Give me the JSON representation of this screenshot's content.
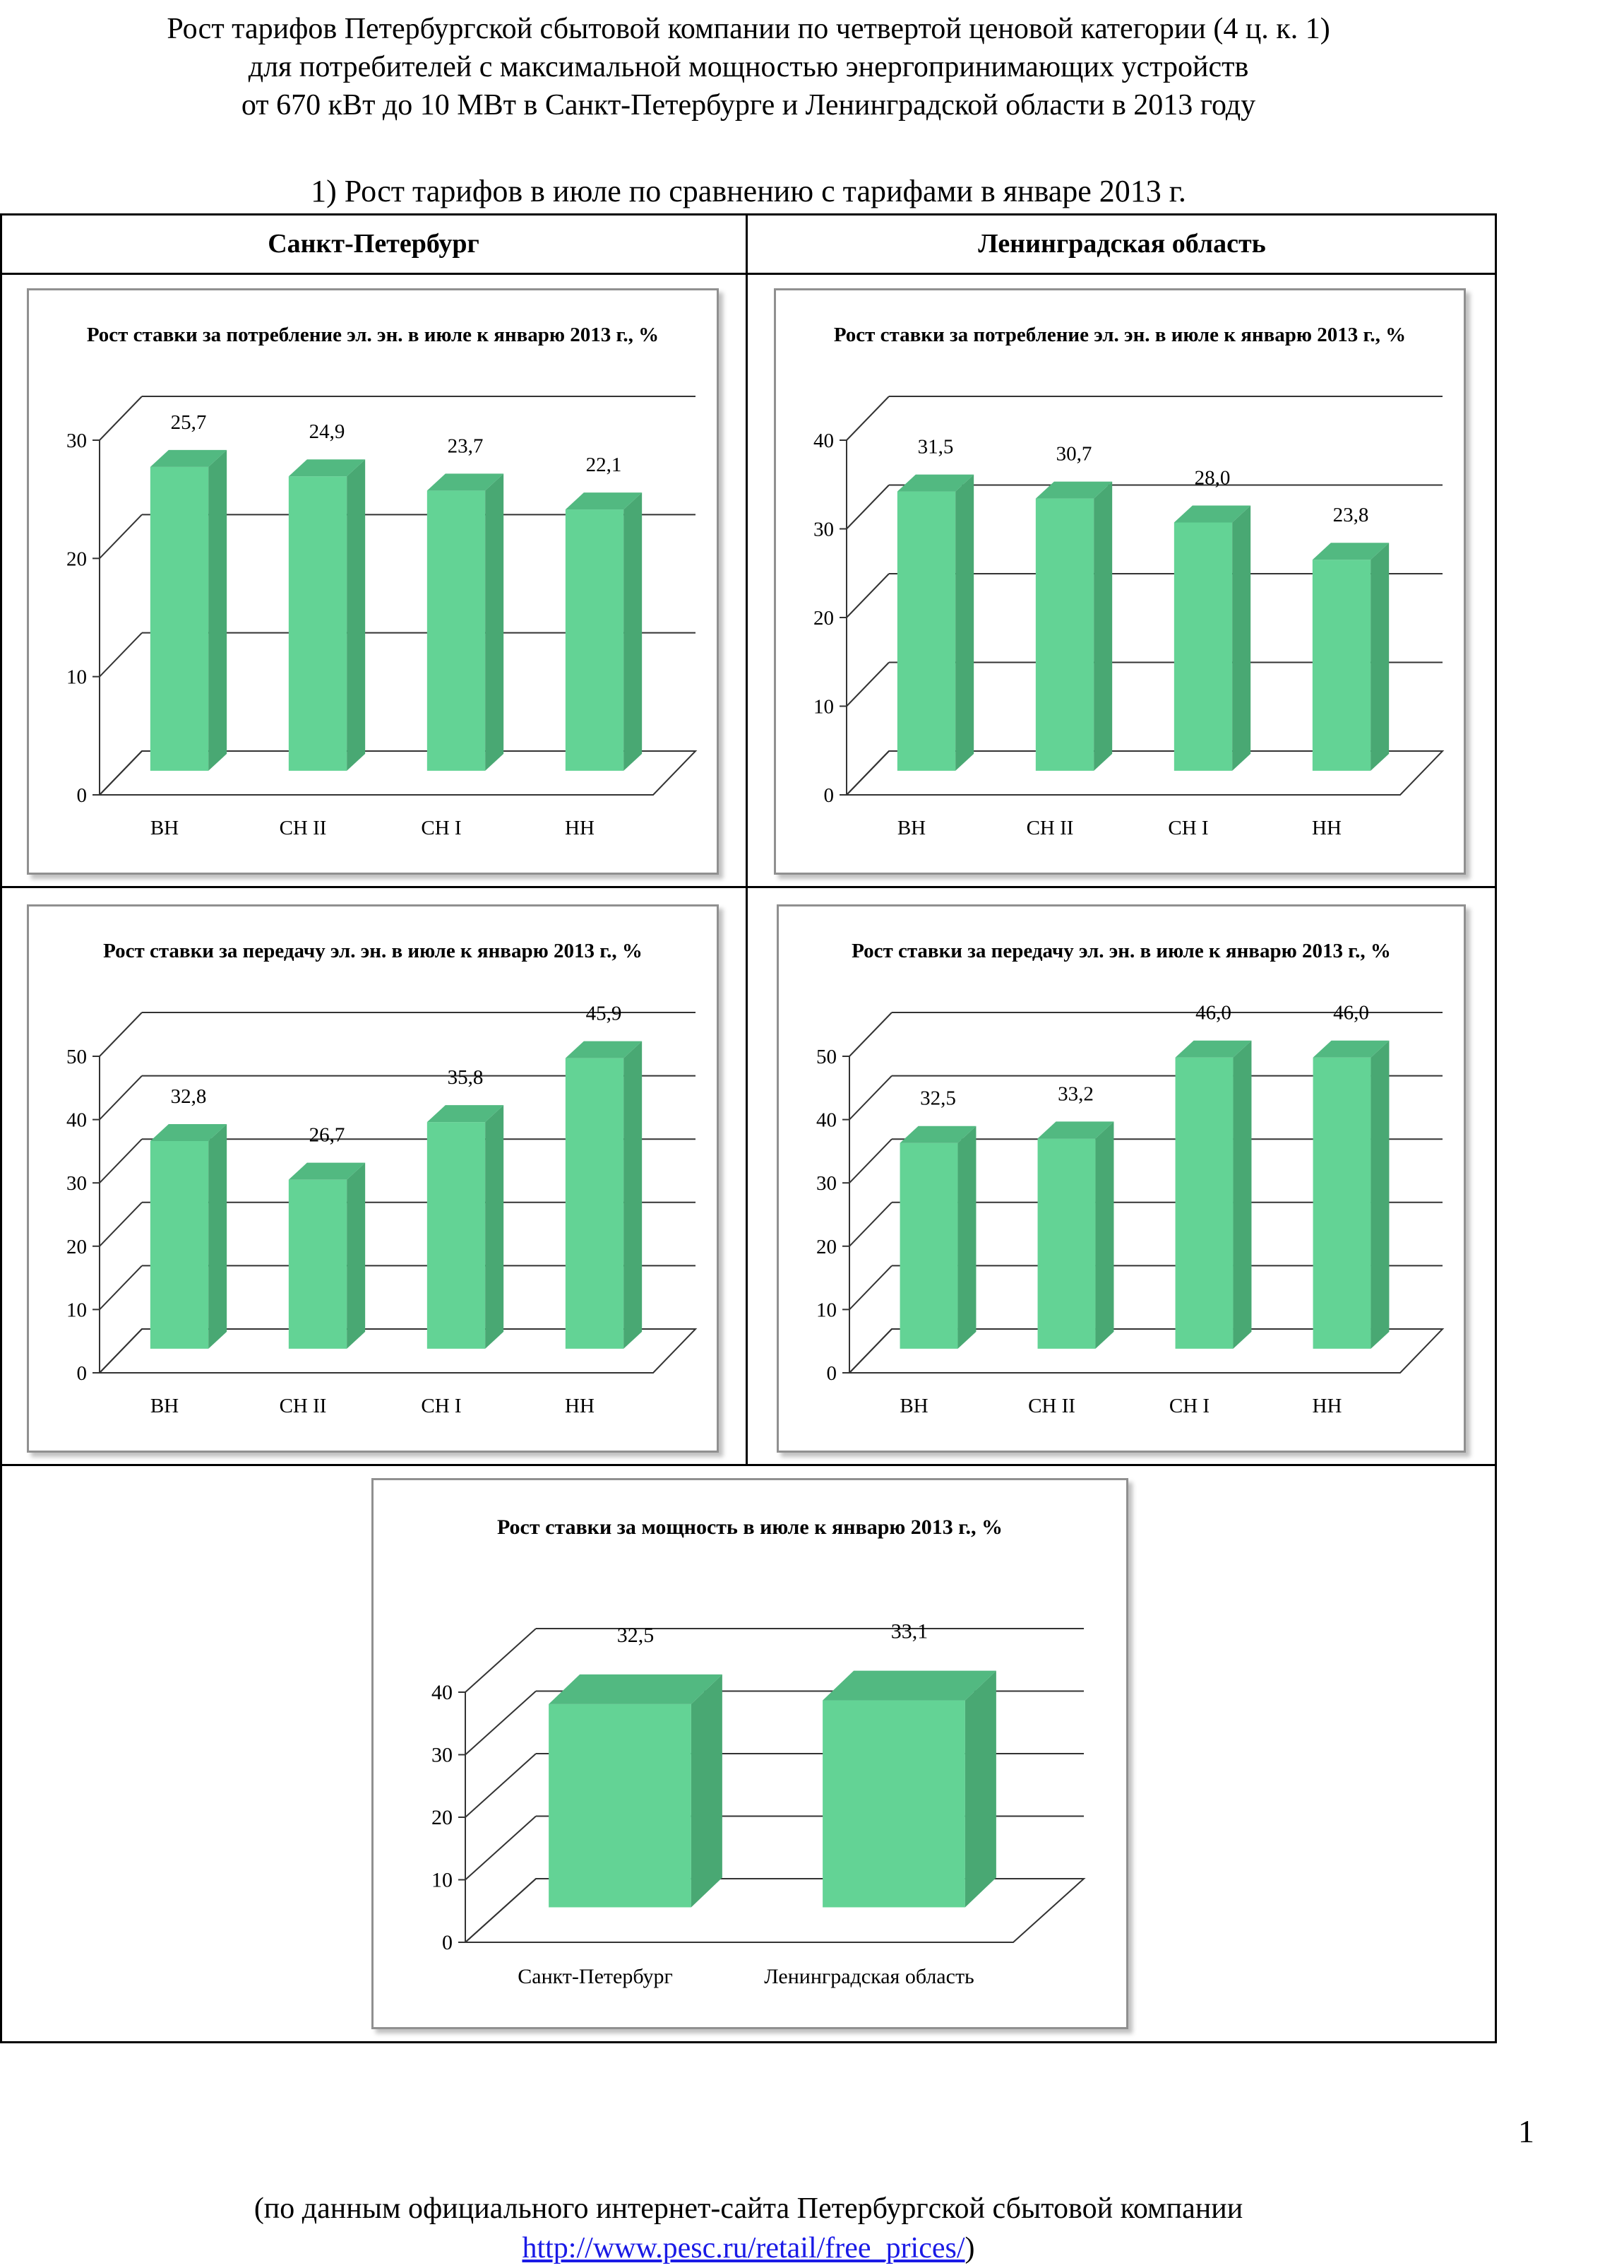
{
  "header": {
    "line1": "Рост тарифов Петербургской сбытовой компании по четвертой ценовой категории (4 ц. к. 1)",
    "line2": "для потребителей с максимальной мощностью энергопринимающих устройств",
    "line3": "от 670 кВт до 10 МВт  в Санкт-Петербурге и Ленинградской области в 2013 году"
  },
  "section_title": "1) Рост тарифов в июле по сравнению с тарифами в январе 2013 г.",
  "columns": {
    "left": "Санкт-Петербург",
    "right": "Ленинградская область"
  },
  "page_number": "1",
  "footer": {
    "line1": "(по данным официального интернет-сайта Петербургской сбытовой компании",
    "link": "http://www.pesc.ru/retail/free_prices/",
    "close": ")"
  },
  "colors": {
    "bar_front": "#63d395",
    "bar_side": "#49a873",
    "bar_top": "#52b981",
    "gridline": "#333333"
  },
  "chart_data": [
    {
      "type": "bar",
      "title": "Рост ставки за потребление эл. эн. в июле к январю 2013 г., %",
      "categories": [
        "ВН",
        "СН II",
        "СН I",
        "НН"
      ],
      "values": [
        25.7,
        24.9,
        23.7,
        22.1
      ],
      "value_labels": [
        "25,7",
        "24,9",
        "23,7",
        "22,1"
      ],
      "ylim": [
        0,
        30
      ],
      "yticks": [
        "0",
        "10",
        "20",
        "30"
      ],
      "grid": true
    },
    {
      "type": "bar",
      "title": "Рост ставки за потребление эл. эн. в июле к январю 2013 г., %",
      "categories": [
        "ВН",
        "СН II",
        "СН I",
        "НН"
      ],
      "values": [
        31.5,
        30.7,
        28.0,
        23.8
      ],
      "value_labels": [
        "31,5",
        "30,7",
        "28,0",
        "23,8"
      ],
      "ylim": [
        0,
        40
      ],
      "yticks": [
        "0",
        "10",
        "20",
        "30",
        "40"
      ],
      "grid": true
    },
    {
      "type": "bar",
      "title": "Рост ставки за передачу эл. эн. в июле к январю 2013 г., %",
      "categories": [
        "ВН",
        "СН II",
        "СН I",
        "НН"
      ],
      "values": [
        32.8,
        26.7,
        35.8,
        45.9
      ],
      "value_labels": [
        "32,8",
        "26,7",
        "35,8",
        "45,9"
      ],
      "ylim": [
        0,
        50
      ],
      "yticks": [
        "0",
        "10",
        "20",
        "30",
        "40",
        "50"
      ],
      "grid": true
    },
    {
      "type": "bar",
      "title": "Рост ставки за передачу эл. эн. в июле к январю 2013 г., %",
      "categories": [
        "ВН",
        "СН II",
        "СН I",
        "НН"
      ],
      "values": [
        32.5,
        33.2,
        46.0,
        46.0
      ],
      "value_labels": [
        "32,5",
        "33,2",
        "46,0",
        "46,0"
      ],
      "ylim": [
        0,
        50
      ],
      "yticks": [
        "0",
        "10",
        "20",
        "30",
        "40",
        "50"
      ],
      "grid": true
    },
    {
      "type": "bar",
      "title": "Рост ставки за мощность в июле к январю 2013 г., %",
      "categories": [
        "Санкт-Петербург",
        "Ленинградская область"
      ],
      "values": [
        32.5,
        33.1
      ],
      "value_labels": [
        "32,5",
        "33,1"
      ],
      "ylim": [
        0,
        40
      ],
      "yticks": [
        "0",
        "10",
        "20",
        "30",
        "40"
      ],
      "grid": true
    }
  ]
}
